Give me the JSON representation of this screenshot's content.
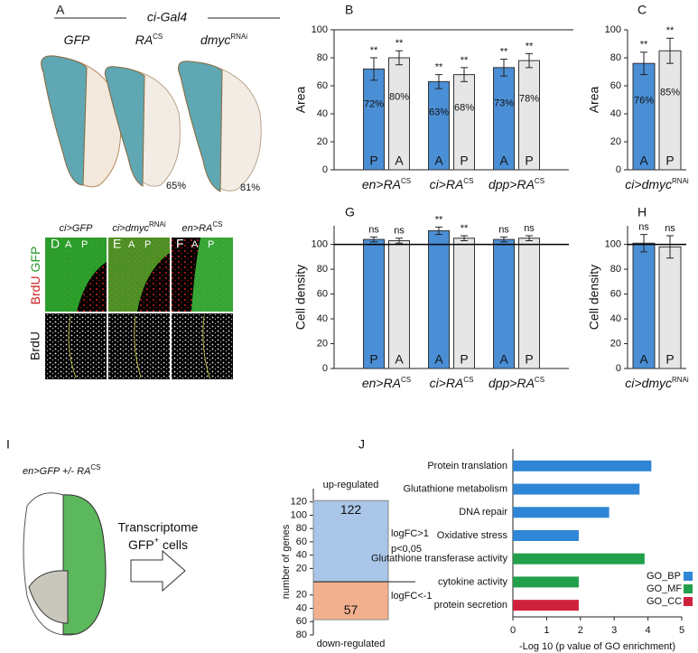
{
  "panels": {
    "letters": [
      "A",
      "B",
      "C",
      "D",
      "E",
      "F",
      "G",
      "H",
      "I",
      "J"
    ],
    "wing": {
      "header": "ci-Gal4",
      "labels": [
        {
          "text": "GFP"
        },
        {
          "text": "RA",
          "sup": "CS"
        },
        {
          "text": "dmyc",
          "sup": "RNAi"
        }
      ],
      "percents": [
        "65%",
        "81%"
      ]
    },
    "imaging": {
      "titles": [
        {
          "text": "ci>GFP"
        },
        {
          "text": "ci>dmyc",
          "sup": "RNAi"
        },
        {
          "text": "en>RA",
          "sup": "CS"
        }
      ],
      "compartments": [
        "A",
        "P"
      ],
      "channel_top": [
        "BrdU",
        "GFP"
      ],
      "channel_bottom": "BrdU"
    },
    "transcriptome": {
      "genotype": "en>GFP +/- RA",
      "genotype_sup": "CS",
      "label": "Transcriptome",
      "cells": "GFP",
      "cells_sup": "+",
      "cells_rest": "cells"
    }
  },
  "chart_data": [
    {
      "type": "bar",
      "ylabel": "Area",
      "categories": [
        "en>RA",
        "ci>RA",
        "dpp>RA"
      ],
      "category_sup": [
        "CS",
        "CS",
        "CS"
      ],
      "ylim": [
        0,
        100
      ],
      "yticks": [
        0,
        20,
        40,
        60,
        80,
        100
      ],
      "top_line": true,
      "series": [
        {
          "color": "#4a8fd6",
          "values": [
            72,
            63,
            73
          ],
          "value_labels": [
            "72%",
            "63%",
            "73%"
          ],
          "errors": [
            8,
            5,
            6
          ],
          "bar_labels": [
            "P",
            "A",
            "A"
          ],
          "significance": [
            "**",
            "**",
            "**"
          ]
        },
        {
          "color": "#e6e6e6",
          "values": [
            80,
            68,
            78
          ],
          "value_labels": [
            "80%",
            "68%",
            "78%"
          ],
          "errors": [
            5,
            5,
            5
          ],
          "bar_labels": [
            "A",
            "P",
            "P"
          ],
          "significance": [
            "**",
            "**",
            "**"
          ]
        }
      ]
    },
    {
      "type": "bar",
      "ylabel": "Area",
      "categories": [
        "ci>dmyc"
      ],
      "category_sup": [
        "RNAi"
      ],
      "ylim": [
        0,
        100
      ],
      "yticks": [
        0,
        20,
        40,
        60,
        80,
        100
      ],
      "series": [
        {
          "color": "#4a8fd6",
          "values": [
            76
          ],
          "value_labels": [
            "76%"
          ],
          "errors": [
            8
          ],
          "bar_labels": [
            "A"
          ],
          "significance": [
            "**"
          ]
        },
        {
          "color": "#e6e6e6",
          "values": [
            85
          ],
          "value_labels": [
            "85%"
          ],
          "errors": [
            9
          ],
          "bar_labels": [
            "P"
          ],
          "significance": [
            "**"
          ]
        }
      ]
    },
    {
      "type": "bar",
      "ylabel": "Cell density",
      "categories": [
        "en>RA",
        "ci>RA",
        "dpp>RA"
      ],
      "category_sup": [
        "CS",
        "CS",
        "CS"
      ],
      "ylim": [
        0,
        115
      ],
      "yticks": [
        0,
        20,
        40,
        60,
        80,
        100
      ],
      "reference_line": 100,
      "series": [
        {
          "color": "#4a8fd6",
          "values": [
            104,
            111,
            104
          ],
          "errors": [
            2,
            3,
            2
          ],
          "bar_labels": [
            "P",
            "A",
            "A"
          ],
          "significance": [
            "ns",
            "**",
            "ns"
          ]
        },
        {
          "color": "#e6e6e6",
          "values": [
            103,
            105,
            105
          ],
          "errors": [
            2,
            2,
            2
          ],
          "bar_labels": [
            "A",
            "P",
            "P"
          ],
          "significance": [
            "ns",
            "**",
            "ns"
          ]
        }
      ]
    },
    {
      "type": "bar",
      "ylabel": "Cell density",
      "categories": [
        "ci>dmyc"
      ],
      "category_sup": [
        "RNAi"
      ],
      "ylim": [
        0,
        115
      ],
      "yticks": [
        0,
        20,
        40,
        60,
        80,
        100
      ],
      "reference_line": 100,
      "series": [
        {
          "color": "#4a8fd6",
          "values": [
            101
          ],
          "errors": [
            7
          ],
          "bar_labels": [
            "A"
          ],
          "significance": [
            "ns"
          ]
        },
        {
          "color": "#e6e6e6",
          "values": [
            98
          ],
          "errors": [
            9
          ],
          "bar_labels": [
            "P"
          ],
          "significance": [
            "ns"
          ]
        }
      ]
    },
    {
      "type": "diverging_bar",
      "ylabel": "number of genes",
      "categories": [
        "up-regulated",
        "down-regulated"
      ],
      "values": [
        122,
        -57
      ],
      "value_labels": [
        "122",
        "57"
      ],
      "colors": [
        "#a9c6e8",
        "#f2b08f"
      ],
      "ylim": [
        -80,
        140
      ],
      "yticks": [
        {
          "value": -80,
          "label": "80"
        },
        {
          "value": -60,
          "label": "60"
        },
        {
          "value": -40,
          "label": "40"
        },
        {
          "value": -20,
          "label": "20"
        },
        20,
        40,
        60,
        80,
        100,
        120
      ],
      "annotations": [
        "logFC>1",
        "p<0,05",
        "logFC<-1"
      ]
    },
    {
      "type": "barh",
      "xlabel": "-Log 10 (p value of GO enrichment)",
      "categories": [
        "Protein translation",
        "Glutathione metabolism",
        "DNA repair",
        "Oxidative stress",
        "Glutathione transferase activity",
        "cytokine activity",
        "protein secretion"
      ],
      "xlim": [
        0,
        5
      ],
      "xticks": [
        0,
        1,
        2,
        3,
        4,
        5
      ],
      "series": [
        {
          "name": "GO_BP",
          "color": "#2f86d6",
          "values": [
            4.1,
            3.75,
            2.85,
            1.95,
            null,
            null,
            null
          ]
        },
        {
          "name": "GO_MF",
          "color": "#22a04b",
          "values": [
            null,
            null,
            null,
            null,
            3.9,
            1.95,
            null
          ]
        },
        {
          "name": "GO_CC",
          "color": "#d0213c",
          "values": [
            null,
            null,
            null,
            null,
            null,
            null,
            1.95
          ]
        }
      ]
    }
  ]
}
